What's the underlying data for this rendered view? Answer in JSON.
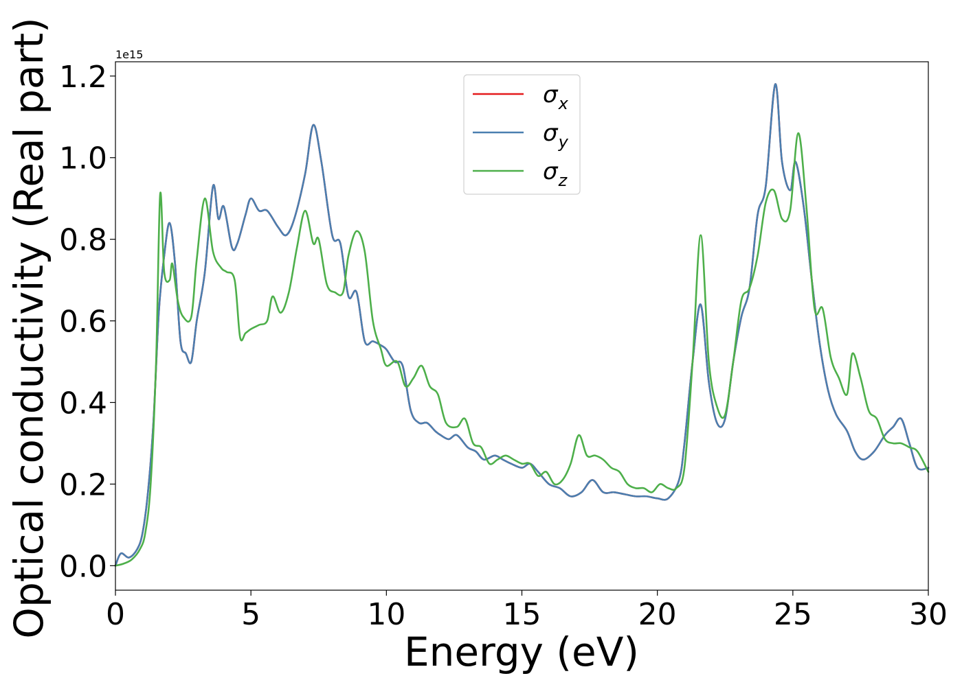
{
  "chart_data": {
    "type": "line",
    "xlabel": "Energy (eV)",
    "ylabel": "Optical conductivity (Real part)",
    "y_offset_text": "1e15",
    "xlim": [
      0,
      30
    ],
    "ylim": [
      -0.06,
      1.235
    ],
    "x_ticks": [
      0,
      5,
      10,
      15,
      20,
      25,
      30
    ],
    "x_tick_labels": [
      "0",
      "5",
      "10",
      "15",
      "20",
      "25",
      "30"
    ],
    "y_ticks": [
      0.0,
      0.2,
      0.4,
      0.6,
      0.8,
      1.0,
      1.2
    ],
    "y_tick_labels": [
      "0.0",
      "0.2",
      "0.4",
      "0.6",
      "0.8",
      "1.0",
      "1.2"
    ],
    "grid": false,
    "legend_position": "top-center",
    "series": [
      {
        "name": "σ",
        "sub": "x",
        "color": "#e41a1c",
        "x": [
          0,
          0.2,
          0.5,
          0.8,
          1.0,
          1.2,
          1.4,
          1.6,
          1.8,
          2.0,
          2.2,
          2.4,
          2.6,
          2.8,
          3.0,
          3.3,
          3.6,
          3.8,
          4.0,
          4.3,
          4.5,
          4.8,
          5.0,
          5.3,
          5.6,
          6.0,
          6.3,
          6.6,
          7.0,
          7.3,
          7.6,
          8.0,
          8.3,
          8.6,
          8.9,
          9.2,
          9.5,
          9.8,
          10.0,
          10.3,
          10.6,
          10.9,
          11.2,
          11.5,
          11.8,
          12.0,
          12.3,
          12.6,
          13.0,
          13.3,
          13.6,
          14.0,
          14.3,
          14.6,
          15.0,
          15.3,
          15.6,
          16.0,
          16.4,
          16.8,
          17.2,
          17.6,
          18.0,
          18.4,
          18.8,
          19.2,
          19.6,
          20.0,
          20.4,
          20.8,
          21.0,
          21.3,
          21.6,
          21.9,
          22.2,
          22.5,
          22.8,
          23.1,
          23.4,
          23.7,
          24.0,
          24.35,
          24.6,
          24.9,
          25.1,
          25.4,
          25.7,
          26.0,
          26.3,
          26.6,
          27.0,
          27.3,
          27.6,
          28.0,
          28.4,
          28.7,
          29.0,
          29.3,
          29.6,
          30.0
        ],
        "values": [
          0.0,
          0.03,
          0.02,
          0.04,
          0.08,
          0.18,
          0.35,
          0.62,
          0.76,
          0.84,
          0.74,
          0.55,
          0.52,
          0.5,
          0.6,
          0.72,
          0.93,
          0.85,
          0.88,
          0.78,
          0.79,
          0.86,
          0.9,
          0.87,
          0.87,
          0.83,
          0.81,
          0.85,
          0.96,
          1.08,
          0.99,
          0.81,
          0.79,
          0.66,
          0.67,
          0.55,
          0.55,
          0.54,
          0.53,
          0.5,
          0.49,
          0.38,
          0.35,
          0.35,
          0.33,
          0.32,
          0.31,
          0.32,
          0.29,
          0.28,
          0.26,
          0.27,
          0.26,
          0.25,
          0.24,
          0.25,
          0.23,
          0.2,
          0.19,
          0.17,
          0.18,
          0.21,
          0.18,
          0.18,
          0.175,
          0.17,
          0.17,
          0.165,
          0.165,
          0.21,
          0.3,
          0.5,
          0.64,
          0.45,
          0.35,
          0.36,
          0.5,
          0.61,
          0.68,
          0.86,
          0.93,
          1.18,
          0.99,
          0.92,
          0.99,
          0.88,
          0.7,
          0.54,
          0.43,
          0.37,
          0.33,
          0.28,
          0.26,
          0.28,
          0.32,
          0.34,
          0.36,
          0.3,
          0.24,
          0.24
        ]
      },
      {
        "name": "σ",
        "sub": "y",
        "color": "#4a7fb0",
        "x": [
          0,
          0.2,
          0.5,
          0.8,
          1.0,
          1.2,
          1.4,
          1.6,
          1.8,
          2.0,
          2.2,
          2.4,
          2.6,
          2.8,
          3.0,
          3.3,
          3.6,
          3.8,
          4.0,
          4.3,
          4.5,
          4.8,
          5.0,
          5.3,
          5.6,
          6.0,
          6.3,
          6.6,
          7.0,
          7.3,
          7.6,
          8.0,
          8.3,
          8.6,
          8.9,
          9.2,
          9.5,
          9.8,
          10.0,
          10.3,
          10.6,
          10.9,
          11.2,
          11.5,
          11.8,
          12.0,
          12.3,
          12.6,
          13.0,
          13.3,
          13.6,
          14.0,
          14.3,
          14.6,
          15.0,
          15.3,
          15.6,
          16.0,
          16.4,
          16.8,
          17.2,
          17.6,
          18.0,
          18.4,
          18.8,
          19.2,
          19.6,
          20.0,
          20.4,
          20.8,
          21.0,
          21.3,
          21.6,
          21.9,
          22.2,
          22.5,
          22.8,
          23.1,
          23.4,
          23.7,
          24.0,
          24.35,
          24.6,
          24.9,
          25.1,
          25.4,
          25.7,
          26.0,
          26.3,
          26.6,
          27.0,
          27.3,
          27.6,
          28.0,
          28.4,
          28.7,
          29.0,
          29.3,
          29.6,
          30.0
        ],
        "values": [
          0.0,
          0.03,
          0.02,
          0.04,
          0.08,
          0.18,
          0.35,
          0.62,
          0.76,
          0.84,
          0.74,
          0.55,
          0.52,
          0.5,
          0.6,
          0.72,
          0.93,
          0.85,
          0.88,
          0.78,
          0.79,
          0.86,
          0.9,
          0.87,
          0.87,
          0.83,
          0.81,
          0.85,
          0.96,
          1.08,
          0.99,
          0.81,
          0.79,
          0.66,
          0.67,
          0.55,
          0.55,
          0.54,
          0.53,
          0.5,
          0.49,
          0.38,
          0.35,
          0.35,
          0.33,
          0.32,
          0.31,
          0.32,
          0.29,
          0.28,
          0.26,
          0.27,
          0.26,
          0.25,
          0.24,
          0.25,
          0.23,
          0.2,
          0.19,
          0.17,
          0.18,
          0.21,
          0.18,
          0.18,
          0.175,
          0.17,
          0.17,
          0.165,
          0.165,
          0.21,
          0.3,
          0.5,
          0.64,
          0.45,
          0.35,
          0.36,
          0.5,
          0.61,
          0.68,
          0.86,
          0.93,
          1.18,
          0.99,
          0.92,
          0.99,
          0.88,
          0.7,
          0.54,
          0.43,
          0.37,
          0.33,
          0.28,
          0.26,
          0.28,
          0.32,
          0.34,
          0.36,
          0.3,
          0.24,
          0.24
        ]
      },
      {
        "name": "σ",
        "sub": "z",
        "color": "#4daf4a",
        "x": [
          0,
          0.3,
          0.6,
          0.9,
          1.1,
          1.3,
          1.5,
          1.65,
          1.8,
          2.0,
          2.1,
          2.3,
          2.5,
          2.8,
          3.0,
          3.3,
          3.6,
          3.9,
          4.1,
          4.4,
          4.6,
          4.8,
          5.0,
          5.3,
          5.6,
          5.8,
          6.1,
          6.4,
          6.7,
          7.0,
          7.3,
          7.5,
          7.8,
          8.1,
          8.4,
          8.6,
          8.9,
          9.2,
          9.5,
          9.8,
          10.0,
          10.4,
          10.7,
          11.0,
          11.3,
          11.6,
          11.9,
          12.2,
          12.6,
          12.9,
          13.2,
          13.5,
          13.8,
          14.1,
          14.4,
          14.7,
          15.0,
          15.3,
          15.6,
          15.9,
          16.2,
          16.5,
          16.8,
          17.1,
          17.4,
          17.7,
          18.0,
          18.3,
          18.6,
          18.9,
          19.2,
          19.5,
          19.8,
          20.1,
          20.4,
          20.7,
          21.0,
          21.3,
          21.6,
          21.9,
          22.2,
          22.5,
          22.8,
          23.1,
          23.4,
          23.7,
          24.0,
          24.3,
          24.6,
          24.9,
          25.2,
          25.5,
          25.8,
          26.1,
          26.4,
          26.7,
          27.0,
          27.2,
          27.5,
          27.8,
          28.1,
          28.4,
          28.7,
          29.0,
          29.3,
          29.6,
          30.0
        ],
        "values": [
          0.0,
          0.005,
          0.015,
          0.04,
          0.08,
          0.2,
          0.5,
          0.91,
          0.72,
          0.7,
          0.74,
          0.65,
          0.61,
          0.61,
          0.75,
          0.9,
          0.77,
          0.73,
          0.72,
          0.7,
          0.56,
          0.57,
          0.58,
          0.59,
          0.6,
          0.66,
          0.62,
          0.67,
          0.78,
          0.87,
          0.79,
          0.8,
          0.69,
          0.67,
          0.67,
          0.76,
          0.82,
          0.77,
          0.6,
          0.53,
          0.49,
          0.5,
          0.44,
          0.46,
          0.49,
          0.44,
          0.42,
          0.35,
          0.34,
          0.36,
          0.3,
          0.29,
          0.25,
          0.26,
          0.27,
          0.26,
          0.25,
          0.25,
          0.22,
          0.23,
          0.2,
          0.21,
          0.25,
          0.32,
          0.27,
          0.27,
          0.26,
          0.24,
          0.23,
          0.2,
          0.19,
          0.19,
          0.18,
          0.2,
          0.19,
          0.19,
          0.24,
          0.5,
          0.81,
          0.5,
          0.39,
          0.37,
          0.5,
          0.65,
          0.68,
          0.76,
          0.89,
          0.92,
          0.85,
          0.87,
          1.06,
          0.88,
          0.63,
          0.63,
          0.51,
          0.46,
          0.42,
          0.52,
          0.46,
          0.38,
          0.36,
          0.31,
          0.3,
          0.3,
          0.29,
          0.28,
          0.23
        ]
      }
    ]
  }
}
